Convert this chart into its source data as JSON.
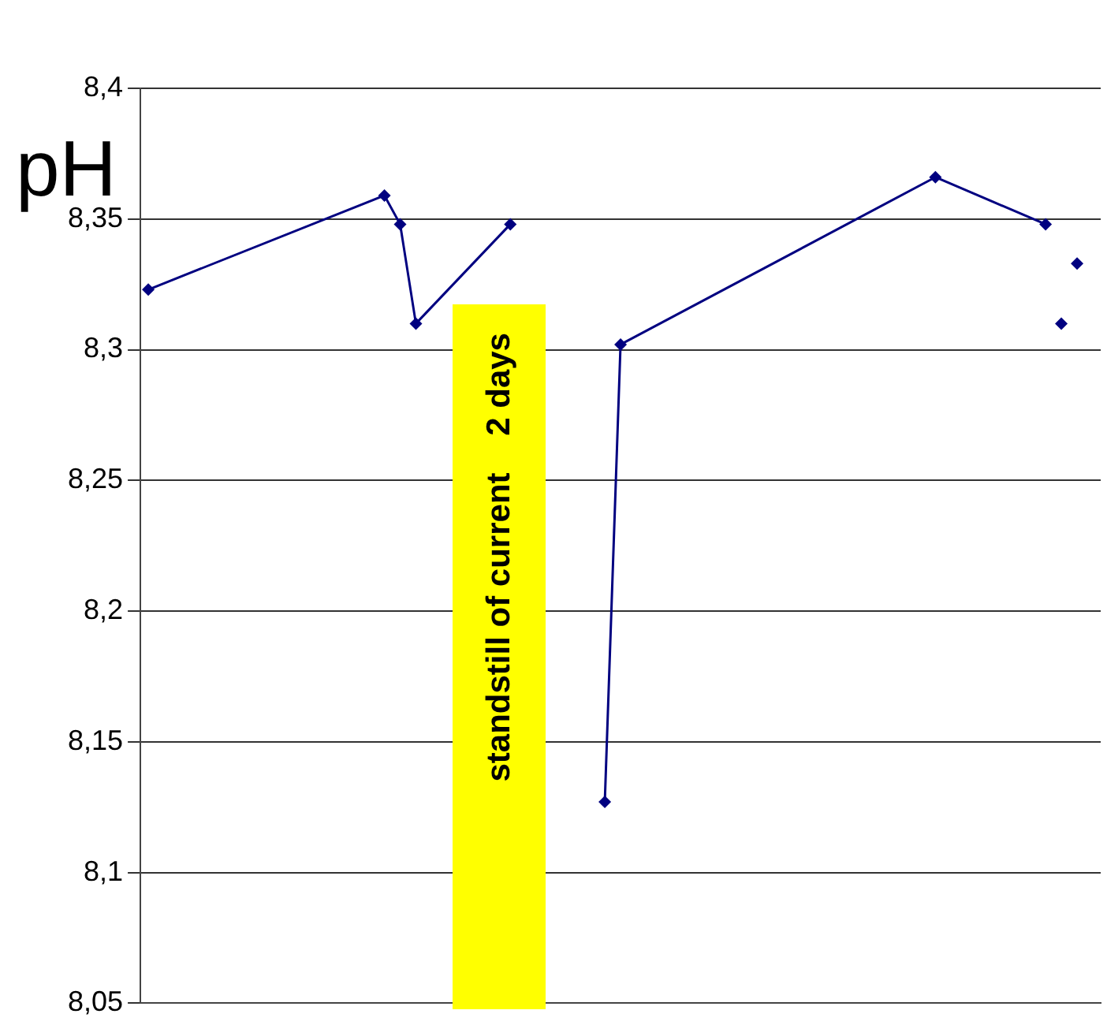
{
  "chart_data": {
    "type": "line",
    "ylabel": "pH",
    "categories": [
      null,
      null,
      null,
      null,
      null,
      null,
      null,
      null,
      null,
      null,
      null,
      null,
      null,
      null,
      null,
      null,
      null,
      null,
      null,
      null,
      null,
      null,
      null,
      null,
      null,
      null,
      null,
      null,
      null,
      null,
      null,
      null,
      null,
      null,
      null,
      null,
      null,
      null,
      null,
      null,
      null,
      null,
      null,
      null,
      null,
      null,
      null,
      null,
      null,
      null,
      null,
      null,
      null,
      null,
      null,
      null,
      null,
      null,
      null,
      null,
      null
    ],
    "series": [
      {
        "color": "#000080",
        "values": [
          8.323,
          null,
          null,
          null,
          null,
          null,
          null,
          null,
          null,
          null,
          null,
          null,
          null,
          null,
          null,
          8.359,
          8.348,
          8.31,
          null,
          null,
          null,
          null,
          null,
          8.348,
          null,
          null,
          null,
          null,
          null,
          null,
          null,
          null,
          null,
          null,
          null,
          null,
          null,
          null,
          null,
          null,
          null,
          null,
          null,
          null,
          null,
          null,
          null,
          null,
          null,
          null,
          null,
          null,
          null,
          null,
          null,
          null,
          null,
          null,
          null,
          null,
          null
        ]
      },
      {
        "color": "#000080",
        "values": [
          null,
          null,
          null,
          null,
          null,
          null,
          null,
          null,
          null,
          null,
          null,
          null,
          null,
          null,
          null,
          null,
          null,
          null,
          null,
          null,
          null,
          null,
          null,
          null,
          null,
          null,
          null,
          null,
          null,
          8.127,
          8.302,
          null,
          null,
          null,
          null,
          null,
          null,
          null,
          null,
          null,
          null,
          null,
          null,
          null,
          null,
          null,
          null,
          null,
          null,
          null,
          8.366,
          null,
          null,
          null,
          null,
          null,
          null,
          8.348,
          null,
          null,
          null
        ]
      },
      {
        "color": "#000080",
        "values": [
          null,
          null,
          null,
          null,
          null,
          null,
          null,
          null,
          null,
          null,
          null,
          null,
          null,
          null,
          null,
          null,
          null,
          null,
          null,
          null,
          null,
          null,
          null,
          null,
          null,
          null,
          null,
          null,
          null,
          null,
          null,
          null,
          null,
          null,
          null,
          null,
          null,
          null,
          null,
          null,
          null,
          null,
          null,
          null,
          null,
          null,
          null,
          null,
          null,
          null,
          null,
          null,
          null,
          null,
          null,
          null,
          null,
          null,
          8.31,
          null,
          null
        ]
      },
      {
        "color": "#000080",
        "values": [
          null,
          null,
          null,
          null,
          null,
          null,
          null,
          null,
          null,
          null,
          null,
          null,
          null,
          null,
          null,
          null,
          null,
          null,
          null,
          null,
          null,
          null,
          null,
          null,
          null,
          null,
          null,
          null,
          null,
          null,
          null,
          null,
          null,
          null,
          null,
          null,
          null,
          null,
          null,
          null,
          null,
          null,
          null,
          null,
          null,
          null,
          null,
          null,
          null,
          null,
          null,
          null,
          null,
          null,
          null,
          null,
          null,
          null,
          null,
          8.333,
          null
        ]
      }
    ],
    "ylim": [
      8.05,
      8.4
    ],
    "yticks": [
      {
        "value": 8.05,
        "label": "8,05"
      },
      {
        "value": 8.1,
        "label": "8,1"
      },
      {
        "value": 8.15,
        "label": "8,15"
      },
      {
        "value": 8.2,
        "label": "8,2"
      },
      {
        "value": 8.25,
        "label": "8,25"
      },
      {
        "value": 8.3,
        "label": "8,3"
      },
      {
        "value": 8.35,
        "label": "8,35"
      },
      {
        "value": 8.4,
        "label": "8,4"
      }
    ],
    "annotations": [
      "standstill of current    2 days"
    ],
    "tick_labels": "y",
    "grid": "y",
    "marker": "diamond",
    "line_style": "solid"
  }
}
